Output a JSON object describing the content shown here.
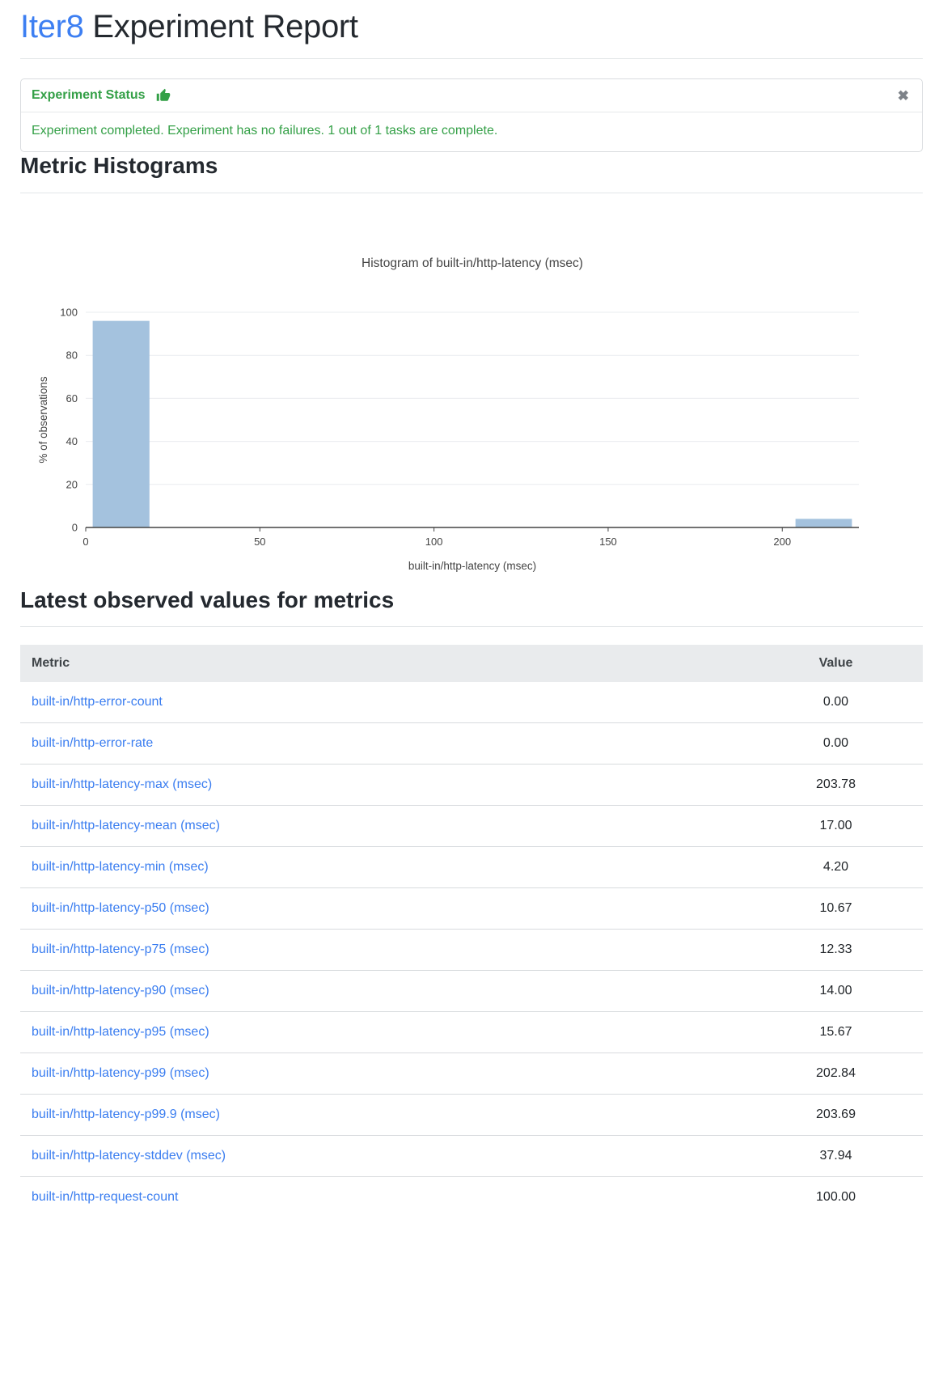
{
  "page": {
    "title_brand": "Iter8",
    "title_rest": " Experiment Report"
  },
  "status_card": {
    "header": "Experiment Status",
    "message": "Experiment completed. Experiment has no failures. 1 out of 1 tasks are complete.",
    "close_glyph": "✖",
    "accent_color": "#34a047"
  },
  "sections": {
    "histograms": "Metric Histograms",
    "latest_values": "Latest observed values for metrics"
  },
  "chart_data": {
    "type": "bar",
    "title": "Histogram of built-in/http-latency (msec)",
    "xlabel": "built-in/http-latency (msec)",
    "ylabel": "% of observations",
    "xlim": [
      0,
      222
    ],
    "ylim": [
      0,
      100
    ],
    "xticks": [
      0,
      50,
      100,
      150,
      200
    ],
    "yticks": [
      0,
      20,
      40,
      60,
      80,
      100
    ],
    "grid": true,
    "legend": false,
    "bar_color": "#a4c2de",
    "axis_color": "#444444",
    "grid_color": "#e9ecef",
    "bins": [
      {
        "x0": 2.0,
        "x1": 18.3,
        "pct": 96
      },
      {
        "x0": 203.8,
        "x1": 220.0,
        "pct": 4
      }
    ]
  },
  "metrics_table": {
    "columns": [
      "Metric",
      "Value"
    ],
    "rows": [
      {
        "metric": "built-in/http-error-count",
        "value": "0.00"
      },
      {
        "metric": "built-in/http-error-rate",
        "value": "0.00"
      },
      {
        "metric": "built-in/http-latency-max (msec)",
        "value": "203.78"
      },
      {
        "metric": "built-in/http-latency-mean (msec)",
        "value": "17.00"
      },
      {
        "metric": "built-in/http-latency-min (msec)",
        "value": "4.20"
      },
      {
        "metric": "built-in/http-latency-p50 (msec)",
        "value": "10.67"
      },
      {
        "metric": "built-in/http-latency-p75 (msec)",
        "value": "12.33"
      },
      {
        "metric": "built-in/http-latency-p90 (msec)",
        "value": "14.00"
      },
      {
        "metric": "built-in/http-latency-p95 (msec)",
        "value": "15.67"
      },
      {
        "metric": "built-in/http-latency-p99 (msec)",
        "value": "202.84"
      },
      {
        "metric": "built-in/http-latency-p99.9 (msec)",
        "value": "203.69"
      },
      {
        "metric": "built-in/http-latency-stddev (msec)",
        "value": "37.94"
      },
      {
        "metric": "built-in/http-request-count",
        "value": "100.00"
      }
    ]
  }
}
